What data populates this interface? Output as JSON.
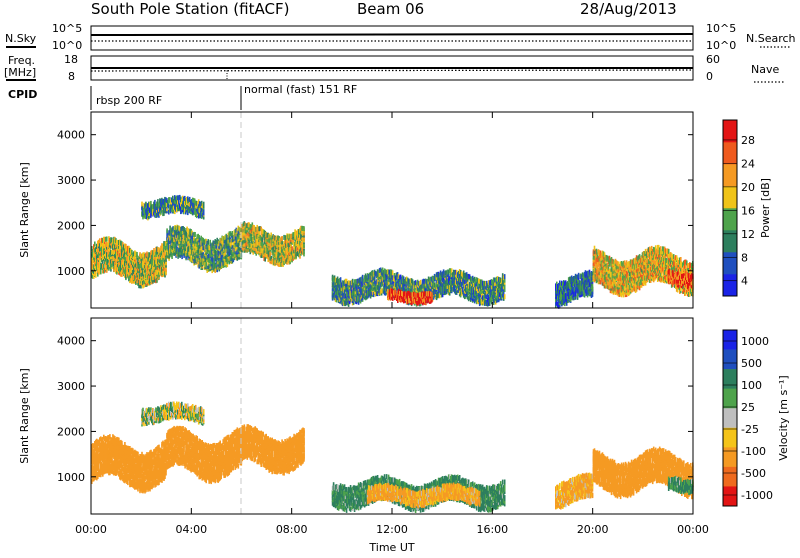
{
  "header": {
    "station": "South Pole Station (fitACF)",
    "beam": "Beam 06",
    "date": "28/Aug/2013"
  },
  "params": {
    "nsky": {
      "label": "N.Sky",
      "ticks": [
        "10^5",
        "10^0"
      ]
    },
    "nsearch": {
      "label": "N.Search",
      "ticks": [
        "10^5",
        "10^0"
      ]
    },
    "freq": {
      "label_line1": "Freq.",
      "label_line2": "[MHz]",
      "ticks": [
        "18",
        "8"
      ]
    },
    "nave": {
      "label": "Nave",
      "ticks": [
        "60",
        "0"
      ]
    },
    "cpid": {
      "label": "CPID",
      "modes": [
        {
          "name": "rbsp 200 RF",
          "start_hour": 0
        },
        {
          "name": "normal (fast) 151 RF",
          "start_hour": 6
        }
      ]
    }
  },
  "colors": {
    "power": [
      "#1a23e6",
      "#1f4fbf",
      "#2d7f5e",
      "#4ea34b",
      "#f0c419",
      "#f59a23",
      "#ef5a1e",
      "#e31414"
    ],
    "velocity": [
      "#1a23e6",
      "#1f4fbf",
      "#2d7f5e",
      "#4ea34b",
      "#bfbfbf",
      "#f5c419",
      "#f59a23",
      "#ef6a1e",
      "#e31414"
    ]
  },
  "chart_data": [
    {
      "type": "heatmap",
      "panel": "power",
      "ylabel": "Slant Range [km]",
      "x_ticks": [
        "00:00",
        "04:00",
        "08:00",
        "12:00",
        "16:00",
        "20:00",
        "00:00"
      ],
      "xlim_hours": [
        0,
        24
      ],
      "ylim_km": [
        180,
        4500
      ],
      "y_ticks": [
        1000,
        2000,
        3000,
        4000
      ],
      "colorbar": {
        "label": "Power [dB]",
        "ticks": [
          "28",
          "24",
          "20",
          "16",
          "12",
          "8",
          "4"
        ],
        "range": [
          0,
          30
        ]
      },
      "regions": [
        {
          "t_start": 0.0,
          "t_end": 3.0,
          "r_center": 1200,
          "r_width": 700,
          "level": 16
        },
        {
          "t_start": 3.0,
          "t_end": 6.0,
          "r_center": 1500,
          "r_width": 650,
          "level": 12
        },
        {
          "t_start": 6.0,
          "t_end": 8.5,
          "r_center": 1600,
          "r_width": 600,
          "level": 16
        },
        {
          "t_start": 2.0,
          "t_end": 4.5,
          "r_center": 2400,
          "r_width": 300,
          "level": 10
        },
        {
          "t_start": 9.6,
          "t_end": 16.5,
          "r_center": 650,
          "r_width": 500,
          "level": 10
        },
        {
          "t_start": 11.8,
          "t_end": 13.6,
          "r_center": 450,
          "r_width": 200,
          "level": 26
        },
        {
          "t_start": 18.5,
          "t_end": 20.0,
          "r_center": 600,
          "r_width": 500,
          "level": 8
        },
        {
          "t_start": 20.0,
          "t_end": 24.0,
          "r_center": 1000,
          "r_width": 700,
          "level": 18
        },
        {
          "t_start": 23.0,
          "t_end": 24.0,
          "r_center": 850,
          "r_width": 250,
          "level": 26
        }
      ]
    },
    {
      "type": "heatmap",
      "panel": "velocity",
      "ylabel": "Slant Range [km]",
      "xlabel": "Time UT",
      "x_ticks": [
        "00:00",
        "04:00",
        "08:00",
        "12:00",
        "16:00",
        "20:00",
        "00:00"
      ],
      "xlim_hours": [
        0,
        24
      ],
      "ylim_km": [
        180,
        4500
      ],
      "y_ticks": [
        1000,
        2000,
        3000,
        4000
      ],
      "colorbar": {
        "label": "Velocity [m s⁻¹]",
        "ticks": [
          "1000",
          "500",
          "100",
          "25",
          "-25",
          "-100",
          "-500",
          "-1000"
        ]
      },
      "regions": [
        {
          "t_start": 0.0,
          "t_end": 3.0,
          "r_center": 1300,
          "r_width": 800,
          "level": -300
        },
        {
          "t_start": 3.0,
          "t_end": 6.0,
          "r_center": 1500,
          "r_width": 800,
          "level": -300
        },
        {
          "t_start": 6.0,
          "t_end": 8.5,
          "r_center": 1600,
          "r_width": 700,
          "level": -300
        },
        {
          "t_start": 2.0,
          "t_end": 4.5,
          "r_center": 2400,
          "r_width": 300,
          "level": 0
        },
        {
          "t_start": 9.6,
          "t_end": 16.5,
          "r_center": 650,
          "r_width": 500,
          "level": 150
        },
        {
          "t_start": 11.0,
          "t_end": 15.5,
          "r_center": 600,
          "r_width": 300,
          "level": -150
        },
        {
          "t_start": 18.5,
          "t_end": 20.0,
          "r_center": 700,
          "r_width": 500,
          "level": -150
        },
        {
          "t_start": 20.0,
          "t_end": 24.0,
          "r_center": 1100,
          "r_width": 700,
          "level": -300
        },
        {
          "t_start": 23.0,
          "t_end": 24.0,
          "r_center": 850,
          "r_width": 250,
          "level": 150
        }
      ]
    }
  ]
}
